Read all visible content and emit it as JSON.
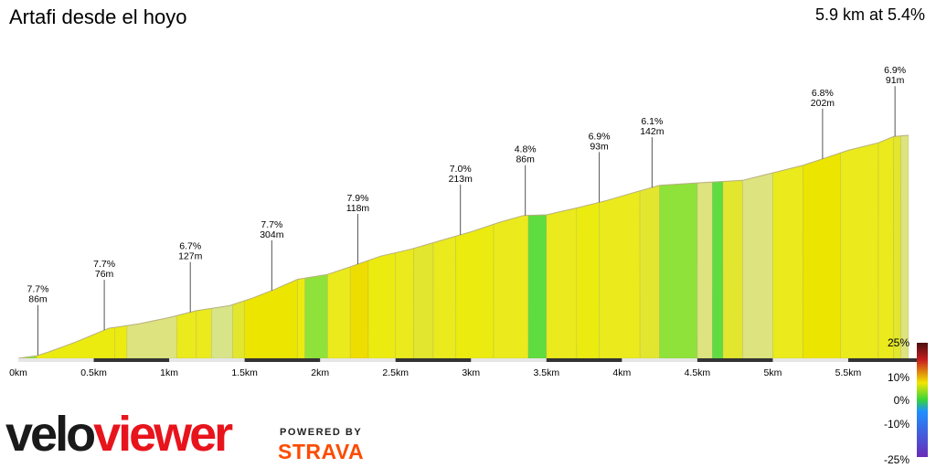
{
  "header": {
    "title": "Artafi desde el hoyo",
    "summary": "5.9 km at 5.4%"
  },
  "chart_data": {
    "type": "area",
    "title": "Artafi desde el hoyo",
    "total_distance_km": 5.9,
    "average_gradient_pct": 5.4,
    "x_ticks": [
      "0km",
      "0.5km",
      "1km",
      "1.5km",
      "2km",
      "2.5km",
      "3km",
      "3.5km",
      "4km",
      "4.5km",
      "5km",
      "5.5km"
    ],
    "x_tick_values": [
      0,
      0.5,
      1,
      1.5,
      2,
      2.5,
      3,
      3.5,
      4,
      4.5,
      5,
      5.5
    ],
    "xlim": [
      0,
      5.9
    ],
    "profile": [
      {
        "x": 0.0,
        "y": 0
      },
      {
        "x": 0.12,
        "y": 2
      },
      {
        "x": 0.2,
        "y": 5
      },
      {
        "x": 0.28,
        "y": 8.5
      },
      {
        "x": 0.38,
        "y": 13
      },
      {
        "x": 0.5,
        "y": 19
      },
      {
        "x": 0.6,
        "y": 24
      },
      {
        "x": 0.8,
        "y": 27.5
      },
      {
        "x": 1.0,
        "y": 32.5
      },
      {
        "x": 1.18,
        "y": 38
      },
      {
        "x": 1.4,
        "y": 42
      },
      {
        "x": 1.55,
        "y": 48
      },
      {
        "x": 1.7,
        "y": 55
      },
      {
        "x": 1.85,
        "y": 63
      },
      {
        "x": 2.05,
        "y": 67
      },
      {
        "x": 2.2,
        "y": 73
      },
      {
        "x": 2.4,
        "y": 81.5
      },
      {
        "x": 2.6,
        "y": 87
      },
      {
        "x": 2.8,
        "y": 94
      },
      {
        "x": 3.0,
        "y": 101
      },
      {
        "x": 3.2,
        "y": 109
      },
      {
        "x": 3.35,
        "y": 114
      },
      {
        "x": 3.5,
        "y": 114.5
      },
      {
        "x": 3.7,
        "y": 120
      },
      {
        "x": 3.9,
        "y": 126
      },
      {
        "x": 4.1,
        "y": 133
      },
      {
        "x": 4.25,
        "y": 138
      },
      {
        "x": 4.5,
        "y": 140
      },
      {
        "x": 4.8,
        "y": 142
      },
      {
        "x": 5.0,
        "y": 148
      },
      {
        "x": 5.2,
        "y": 154
      },
      {
        "x": 5.35,
        "y": 160
      },
      {
        "x": 5.5,
        "y": 166
      },
      {
        "x": 5.7,
        "y": 172
      },
      {
        "x": 5.8,
        "y": 177
      },
      {
        "x": 5.9,
        "y": 178
      }
    ],
    "gradient_segments": [
      {
        "x0": 0.0,
        "x1": 0.12,
        "gradient": 2.0
      },
      {
        "x0": 0.12,
        "x1": 0.64,
        "gradient": 7.7
      },
      {
        "x0": 0.64,
        "x1": 0.72,
        "gradient": 7.5
      },
      {
        "x0": 0.72,
        "x1": 1.05,
        "gradient": 3.5
      },
      {
        "x0": 1.05,
        "x1": 1.18,
        "gradient": 6.7
      },
      {
        "x0": 1.18,
        "x1": 1.28,
        "gradient": 6.0
      },
      {
        "x0": 1.28,
        "x1": 1.42,
        "gradient": 2.5
      },
      {
        "x0": 1.42,
        "x1": 1.5,
        "gradient": 5.0
      },
      {
        "x0": 1.5,
        "x1": 1.85,
        "gradient": 8.5
      },
      {
        "x0": 1.85,
        "x1": 1.9,
        "gradient": 7.0
      },
      {
        "x0": 1.9,
        "x1": 2.05,
        "gradient": 2.0
      },
      {
        "x0": 2.05,
        "x1": 2.2,
        "gradient": 5.5
      },
      {
        "x0": 2.2,
        "x1": 2.32,
        "gradient": 9.5
      },
      {
        "x0": 2.32,
        "x1": 2.5,
        "gradient": 7.9
      },
      {
        "x0": 2.5,
        "x1": 2.62,
        "gradient": 6.0
      },
      {
        "x0": 2.62,
        "x1": 2.75,
        "gradient": 5.0
      },
      {
        "x0": 2.75,
        "x1": 2.9,
        "gradient": 6.5
      },
      {
        "x0": 2.9,
        "x1": 3.15,
        "gradient": 7.5
      },
      {
        "x0": 3.15,
        "x1": 3.38,
        "gradient": 5.5
      },
      {
        "x0": 3.38,
        "x1": 3.5,
        "gradient": 0.5
      },
      {
        "x0": 3.5,
        "x1": 3.7,
        "gradient": 6.5
      },
      {
        "x0": 3.7,
        "x1": 3.85,
        "gradient": 7.5
      },
      {
        "x0": 3.85,
        "x1": 4.12,
        "gradient": 6.0
      },
      {
        "x0": 4.12,
        "x1": 4.25,
        "gradient": 5.0
      },
      {
        "x0": 4.25,
        "x1": 4.5,
        "gradient": 2.0
      },
      {
        "x0": 4.5,
        "x1": 4.6,
        "gradient": 4.0
      },
      {
        "x0": 4.6,
        "x1": 4.67,
        "gradient": 1.0
      },
      {
        "x0": 4.67,
        "x1": 4.8,
        "gradient": 5.0
      },
      {
        "x0": 4.8,
        "x1": 5.0,
        "gradient": 4.0
      },
      {
        "x0": 5.0,
        "x1": 5.2,
        "gradient": 6.0
      },
      {
        "x0": 5.2,
        "x1": 5.45,
        "gradient": 8.0
      },
      {
        "x0": 5.45,
        "x1": 5.7,
        "gradient": 6.8
      },
      {
        "x0": 5.7,
        "x1": 5.8,
        "gradient": 6.0
      },
      {
        "x0": 5.8,
        "x1": 5.85,
        "gradient": 5.0
      },
      {
        "x0": 5.85,
        "x1": 5.9,
        "gradient": 3.0
      }
    ],
    "annotations": [
      {
        "x": 0.13,
        "gradient": "7.7%",
        "length": "86m"
      },
      {
        "x": 0.57,
        "gradient": "7.7%",
        "length": "76m"
      },
      {
        "x": 1.14,
        "gradient": "6.7%",
        "length": "127m"
      },
      {
        "x": 1.68,
        "gradient": "7.7%",
        "length": "304m"
      },
      {
        "x": 2.25,
        "gradient": "7.9%",
        "length": "118m"
      },
      {
        "x": 2.93,
        "gradient": "7.0%",
        "length": "213m"
      },
      {
        "x": 3.36,
        "gradient": "4.8%",
        "length": "86m"
      },
      {
        "x": 3.85,
        "gradient": "6.9%",
        "length": "93m"
      },
      {
        "x": 4.2,
        "gradient": "6.1%",
        "length": "142m"
      },
      {
        "x": 5.33,
        "gradient": "6.8%",
        "length": "202m"
      },
      {
        "x": 5.81,
        "gradient": "6.9%",
        "length": "91m"
      }
    ],
    "legend": {
      "position": "right",
      "labels": [
        "25%",
        "10%",
        "0%",
        "-10%",
        "-25%"
      ]
    }
  },
  "branding": {
    "logo_part1": "velo",
    "logo_part2": "viewer",
    "powered_by": "POWERED BY",
    "strava": "STRAVA"
  }
}
